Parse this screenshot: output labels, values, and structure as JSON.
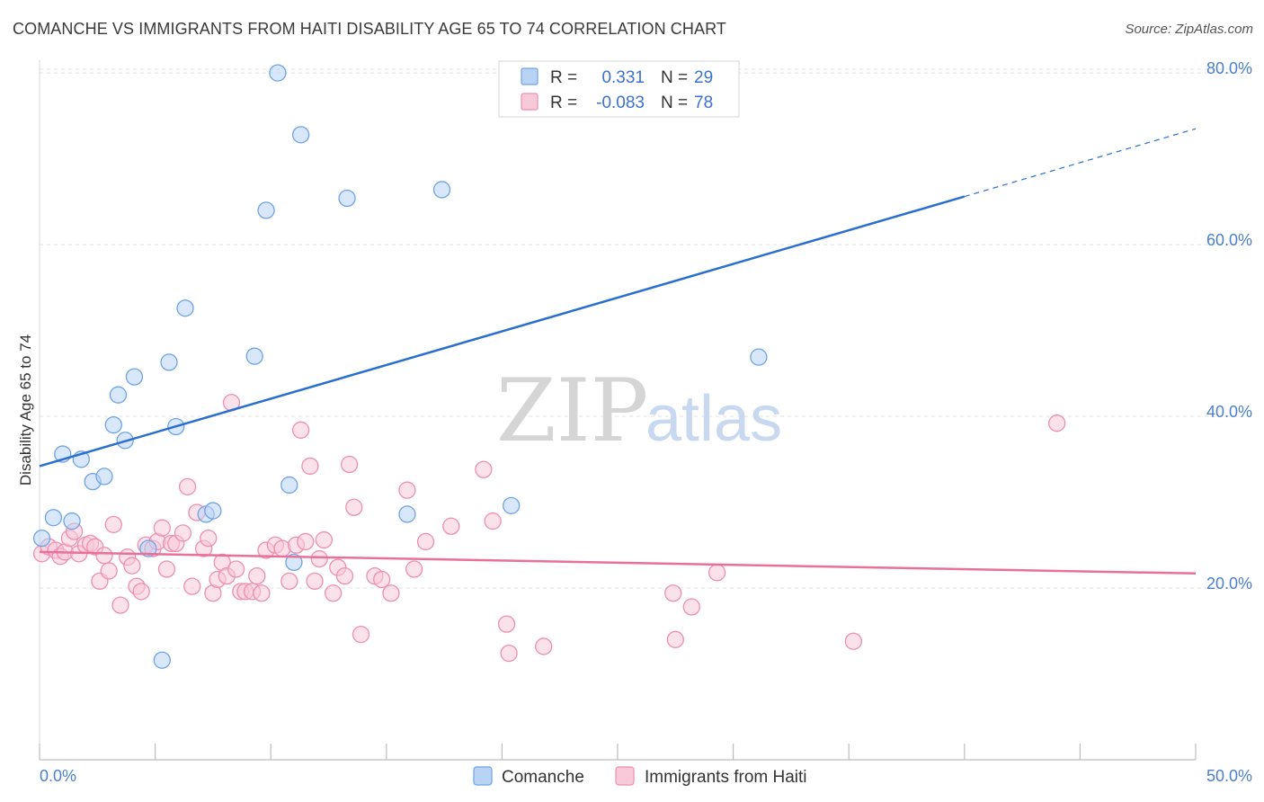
{
  "title": "COMANCHE VS IMMIGRANTS FROM HAITI DISABILITY AGE 65 TO 74 CORRELATION CHART",
  "source": "Source: ZipAtlas.com",
  "watermark": {
    "zip": "ZIP",
    "atlas": "atlas"
  },
  "colors": {
    "comanche": "#6fa3e6",
    "comanche_fill": "#b9d3f5",
    "comanche_line": "#2a6fcf",
    "haiti": "#ee8fae",
    "haiti_fill": "#f8c9d8",
    "haiti_line": "#e8709a",
    "grid": "#e2e2e2",
    "tick_label": "#4a7fd0"
  },
  "legend": {
    "rows": [
      {
        "r_label": "R =",
        "r_value": "0.331",
        "n_label": "N =",
        "n_value": "29"
      },
      {
        "r_label": "R =",
        "r_value": "-0.083",
        "n_label": "N =",
        "n_value": "78"
      }
    ]
  },
  "chart_data": {
    "type": "scatter",
    "title": "COMANCHE VS IMMIGRANTS FROM HAITI DISABILITY AGE 65 TO 74 CORRELATION CHART",
    "xlabel": "",
    "ylabel": "Disability Age 65 to 74",
    "xlim": [
      0,
      50
    ],
    "ylim": [
      0,
      82
    ],
    "x_tick_labels": [
      "0.0%",
      "50.0%"
    ],
    "y_ticks": [
      20,
      40,
      60,
      80
    ],
    "y_tick_labels": [
      "20.0%",
      "40.0%",
      "60.0%",
      "80.0%"
    ],
    "grid": true,
    "legend_position": "top-center",
    "series": [
      {
        "name": "Comanche",
        "points": [
          [
            0.1,
            25.8
          ],
          [
            0.6,
            28.2
          ],
          [
            1.0,
            35.6
          ],
          [
            1.4,
            27.8
          ],
          [
            1.8,
            35.0
          ],
          [
            2.3,
            32.4
          ],
          [
            2.8,
            33.0
          ],
          [
            3.2,
            39.0
          ],
          [
            3.4,
            42.5
          ],
          [
            3.7,
            37.2
          ],
          [
            4.1,
            44.6
          ],
          [
            4.7,
            24.6
          ],
          [
            5.3,
            11.6
          ],
          [
            5.6,
            46.3
          ],
          [
            5.9,
            38.8
          ],
          [
            6.3,
            52.6
          ],
          [
            7.2,
            28.6
          ],
          [
            7.5,
            29.0
          ],
          [
            9.3,
            47.0
          ],
          [
            9.8,
            64.0
          ],
          [
            10.3,
            80.0
          ],
          [
            10.8,
            32.0
          ],
          [
            11.0,
            23.0
          ],
          [
            11.3,
            72.8
          ],
          [
            13.3,
            65.4
          ],
          [
            15.9,
            28.6
          ],
          [
            17.4,
            66.4
          ],
          [
            20.4,
            29.6
          ],
          [
            31.1,
            46.9
          ]
        ],
        "trend": {
          "x0": 0,
          "y0": 34.2,
          "x1": 40,
          "y1": 65.6,
          "dashed_to_x": 50,
          "dashed_to_y": 73.5
        }
      },
      {
        "name": "Immigrants from Haiti",
        "points": [
          [
            0.1,
            24.0
          ],
          [
            0.4,
            24.8
          ],
          [
            0.7,
            24.4
          ],
          [
            0.9,
            23.7
          ],
          [
            1.1,
            24.2
          ],
          [
            1.3,
            25.8
          ],
          [
            1.5,
            26.6
          ],
          [
            1.7,
            24.0
          ],
          [
            2.0,
            25.0
          ],
          [
            2.2,
            25.2
          ],
          [
            2.4,
            24.8
          ],
          [
            2.6,
            20.8
          ],
          [
            2.8,
            23.8
          ],
          [
            3.0,
            22.0
          ],
          [
            3.2,
            27.4
          ],
          [
            3.5,
            18.0
          ],
          [
            3.8,
            23.6
          ],
          [
            4.0,
            22.6
          ],
          [
            4.2,
            20.2
          ],
          [
            4.4,
            19.6
          ],
          [
            4.6,
            25.0
          ],
          [
            4.9,
            24.6
          ],
          [
            5.1,
            25.4
          ],
          [
            5.3,
            27.0
          ],
          [
            5.5,
            22.2
          ],
          [
            5.7,
            25.2
          ],
          [
            5.9,
            25.2
          ],
          [
            6.2,
            26.4
          ],
          [
            6.4,
            31.8
          ],
          [
            6.6,
            20.2
          ],
          [
            6.8,
            28.8
          ],
          [
            7.1,
            24.6
          ],
          [
            7.3,
            25.8
          ],
          [
            7.5,
            19.4
          ],
          [
            7.7,
            21.0
          ],
          [
            7.9,
            23.0
          ],
          [
            8.1,
            21.4
          ],
          [
            8.3,
            41.6
          ],
          [
            8.5,
            22.2
          ],
          [
            8.7,
            19.6
          ],
          [
            8.9,
            19.6
          ],
          [
            9.2,
            19.6
          ],
          [
            9.4,
            21.4
          ],
          [
            9.6,
            19.4
          ],
          [
            9.8,
            24.4
          ],
          [
            10.2,
            25.0
          ],
          [
            10.5,
            24.6
          ],
          [
            10.8,
            20.8
          ],
          [
            11.1,
            25.0
          ],
          [
            11.3,
            38.4
          ],
          [
            11.5,
            25.4
          ],
          [
            11.7,
            34.2
          ],
          [
            11.9,
            20.8
          ],
          [
            12.1,
            23.4
          ],
          [
            12.3,
            25.6
          ],
          [
            12.7,
            19.4
          ],
          [
            12.9,
            22.4
          ],
          [
            13.2,
            21.4
          ],
          [
            13.4,
            34.4
          ],
          [
            13.6,
            29.4
          ],
          [
            13.9,
            14.6
          ],
          [
            14.5,
            21.4
          ],
          [
            14.8,
            21.0
          ],
          [
            15.2,
            19.4
          ],
          [
            15.9,
            31.4
          ],
          [
            16.2,
            22.2
          ],
          [
            16.7,
            25.4
          ],
          [
            17.8,
            27.2
          ],
          [
            19.2,
            33.8
          ],
          [
            19.6,
            27.8
          ],
          [
            20.2,
            15.8
          ],
          [
            20.3,
            12.4
          ],
          [
            21.8,
            13.2
          ],
          [
            27.4,
            19.4
          ],
          [
            27.5,
            14.0
          ],
          [
            28.2,
            17.8
          ],
          [
            29.3,
            21.8
          ],
          [
            35.2,
            13.8
          ],
          [
            44.0,
            39.2
          ]
        ],
        "trend": {
          "x0": 0,
          "y0": 24.2,
          "x1": 50,
          "y1": 21.7
        }
      }
    ]
  },
  "bottom_legend": {
    "items": [
      {
        "label": "Comanche"
      },
      {
        "label": "Immigrants from Haiti"
      }
    ]
  }
}
